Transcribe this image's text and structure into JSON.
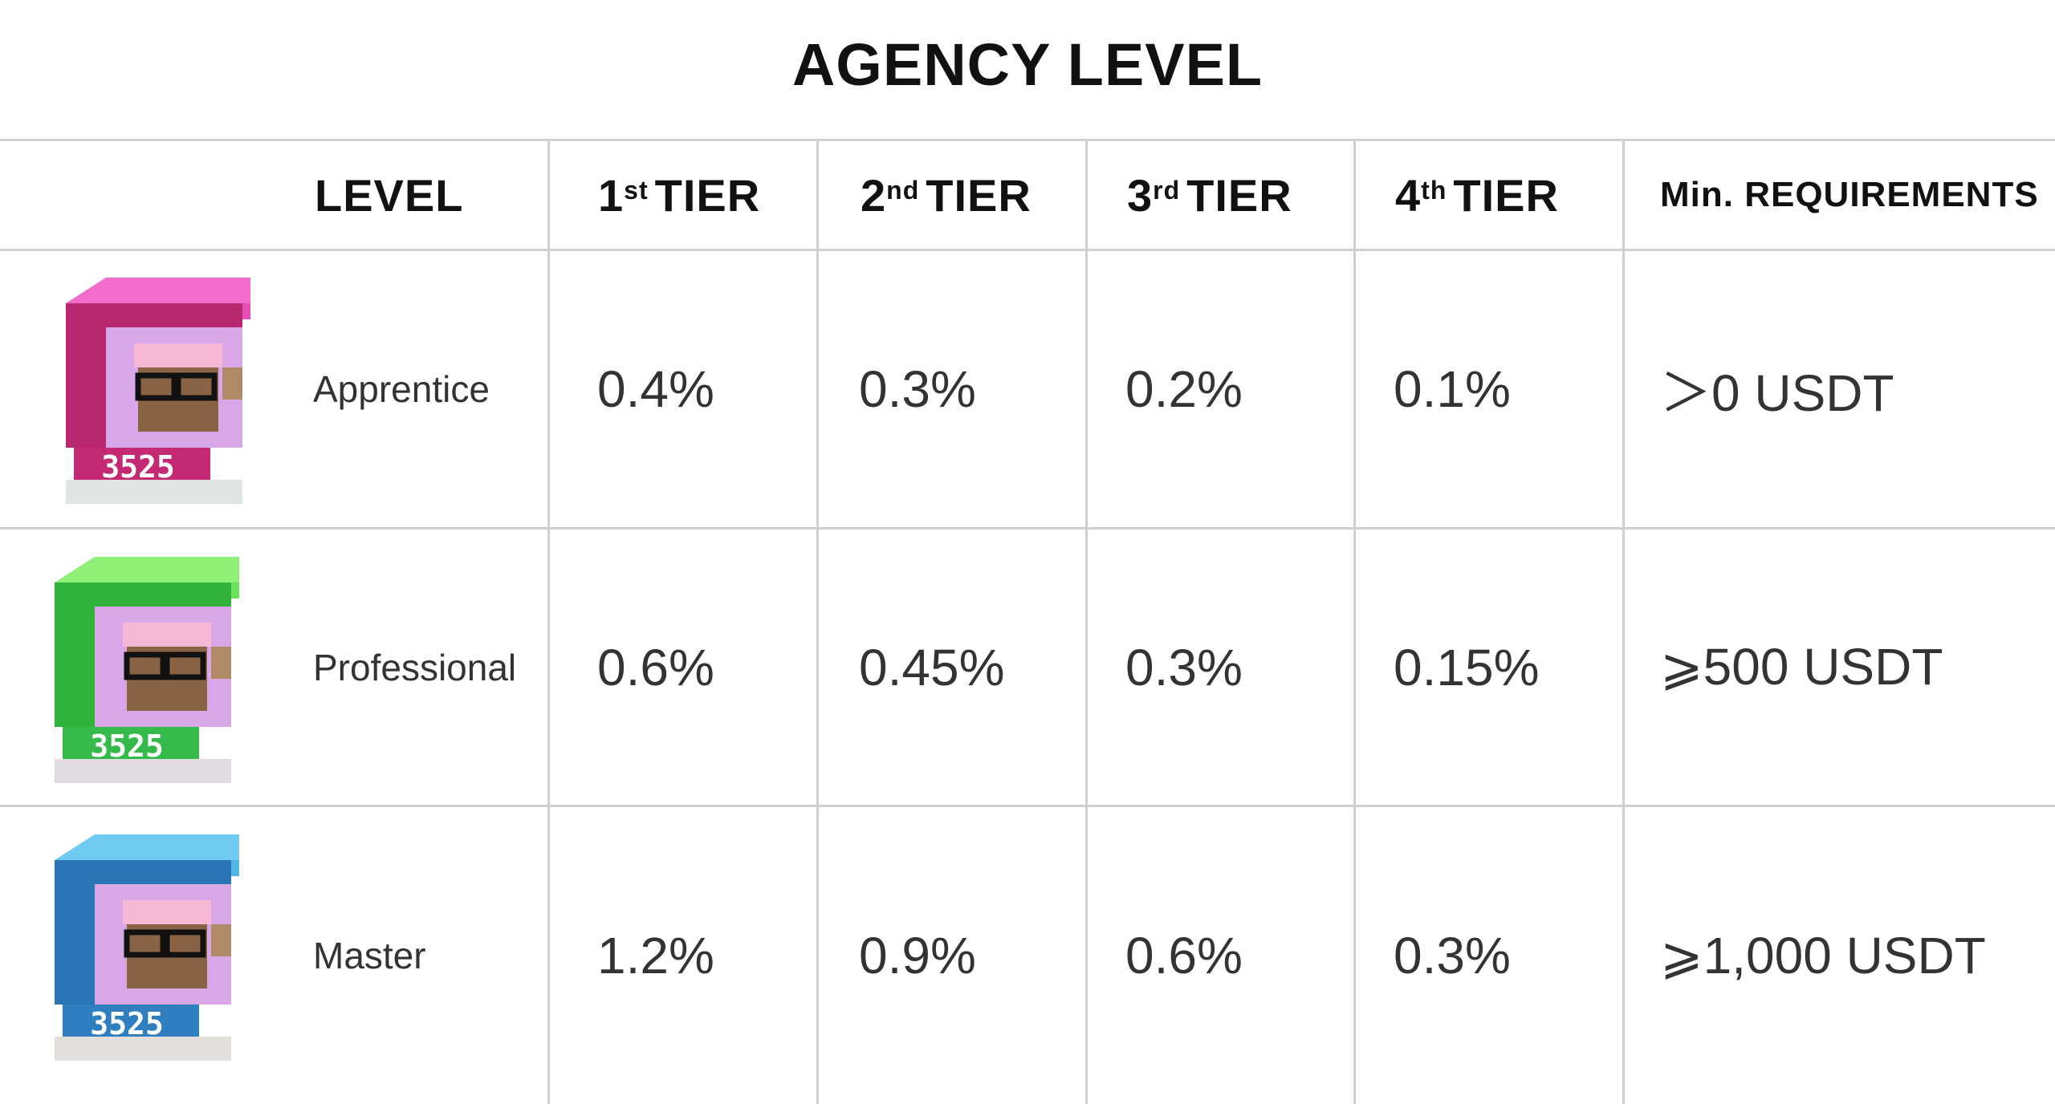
{
  "title": "AGENCY LEVEL",
  "headers": {
    "level": "LEVEL",
    "tier1_num": "1",
    "tier1_sup": "st",
    "tier2_num": "2",
    "tier2_sup": "nd",
    "tier3_num": "3",
    "tier3_sup": "rd",
    "tier4_num": "4",
    "tier4_sup": "th",
    "tier_word": "TIER",
    "requirements": "Min. REQUIREMENTS"
  },
  "rows": [
    {
      "level": "Apprentice",
      "tier1": "0.4%",
      "tier2": "0.3%",
      "tier3": "0.2%",
      "tier4": "0.1%",
      "requirement": "＞0 USDT",
      "avatar": {
        "number": "3525",
        "top_color": "#e94db7",
        "top_light": "#f36ccb",
        "body_color": "#b8286e",
        "base_color": "#dfe6e1"
      }
    },
    {
      "level": "Professional",
      "tier1": "0.6%",
      "tier2": "0.45%",
      "tier3": "0.3%",
      "tier4": "0.15%",
      "requirement": "⩾500 USDT",
      "avatar": {
        "number": "3525",
        "top_color": "#6fe05a",
        "top_light": "#8ff078",
        "body_color": "#2fb33a",
        "base_color": "#e2dbe1"
      }
    },
    {
      "level": "Master",
      "tier1": "1.2%",
      "tier2": "0.9%",
      "tier3": "0.6%",
      "tier4": "0.3%",
      "requirement": "⩾1,000 USDT",
      "avatar": {
        "number": "3525",
        "top_color": "#4fb7e8",
        "top_light": "#6fcbf2",
        "body_color": "#2a76b5",
        "base_color": "#e2dfdb"
      }
    }
  ]
}
